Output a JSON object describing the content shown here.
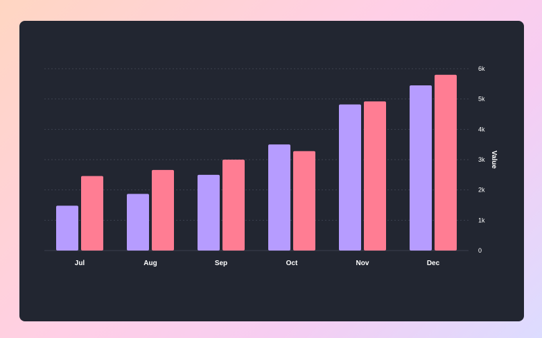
{
  "chart_data": {
    "type": "bar",
    "categories": [
      "Jul",
      "Aug",
      "Sep",
      "Oct",
      "Nov",
      "Dec"
    ],
    "series": [
      {
        "values": [
          1480,
          1870,
          2500,
          3500,
          4820,
          5450
        ],
        "color": "#b69cff"
      },
      {
        "values": [
          2460,
          2660,
          3000,
          3280,
          4920,
          5800
        ],
        "color": "#ff7d93"
      }
    ],
    "ylabel": "Value",
    "ylim": [
      0,
      6000
    ],
    "yticks": [
      0,
      1000,
      2000,
      3000,
      4000,
      5000,
      6000
    ],
    "ytick_labels": [
      "0",
      "1k",
      "2k",
      "3k",
      "4k",
      "5k",
      "6k"
    ],
    "y_axis_side": "right",
    "grid": true,
    "legend": false
  }
}
